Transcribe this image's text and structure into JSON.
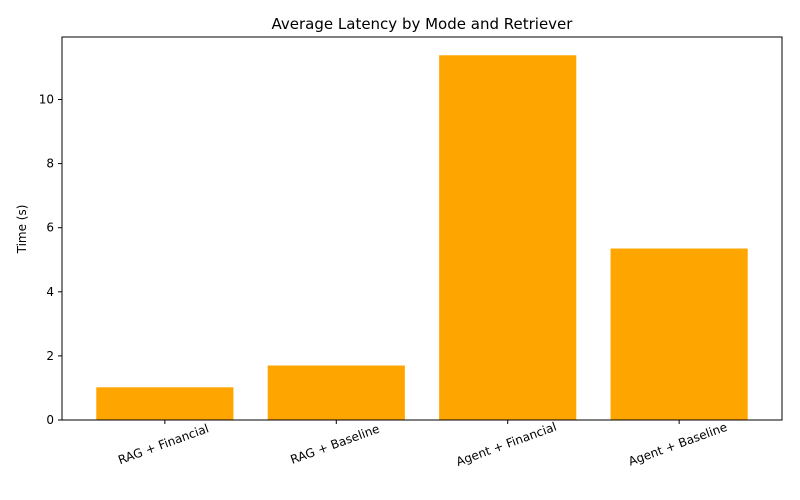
{
  "chart_data": {
    "type": "bar",
    "title": "Average Latency by Mode and Retriever",
    "xlabel": "",
    "ylabel": "Time (s)",
    "categories": [
      "RAG + Financial",
      "RAG + Baseline",
      "Agent + Financial",
      "Agent + Baseline"
    ],
    "values": [
      1.02,
      1.7,
      11.38,
      5.35
    ],
    "ylim": [
      0,
      11.95
    ],
    "yticks": [
      0,
      2,
      4,
      6,
      8,
      10
    ],
    "bar_color": "#ffa500",
    "grid": false,
    "legend": "none"
  }
}
